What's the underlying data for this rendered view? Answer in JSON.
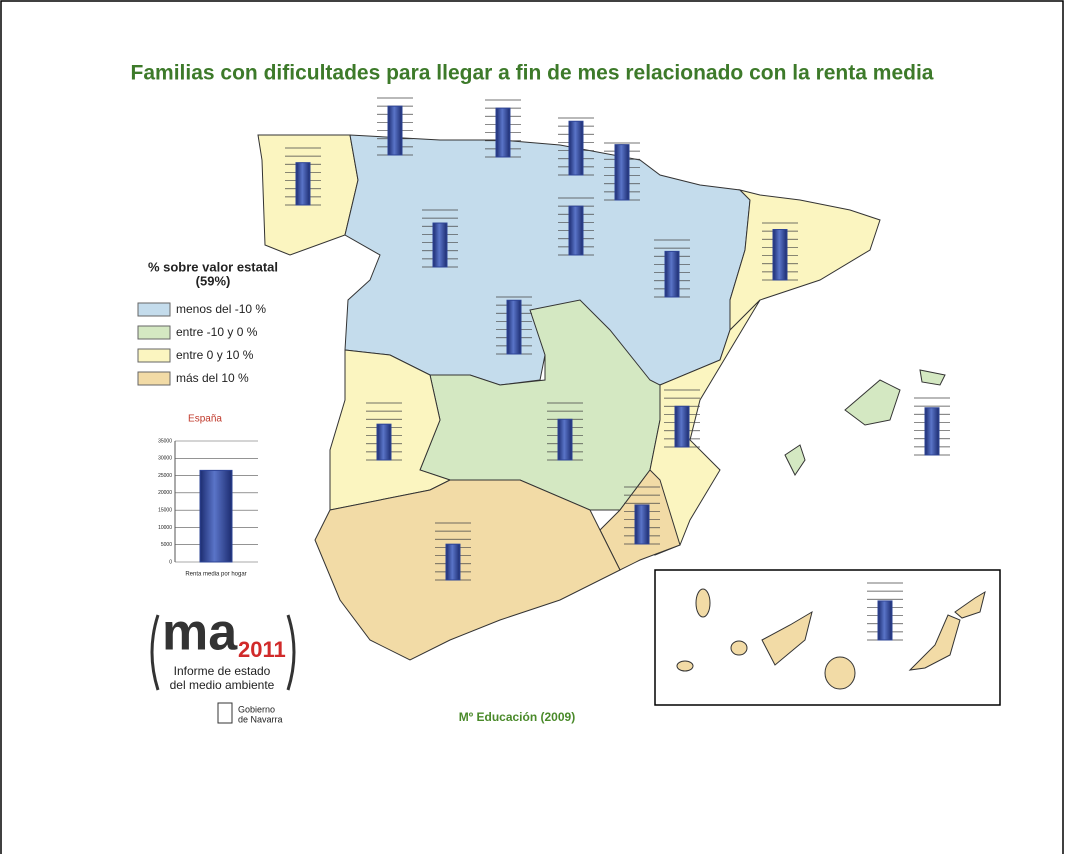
{
  "title": "Familias con dificultades para llegar a fin de mes relacionado con la renta media",
  "legend": {
    "title": "% sobre valor estatal",
    "subtitle": "(59%)",
    "items": [
      {
        "label": "menos del -10 %",
        "color": "#c4dcec"
      },
      {
        "label": "entre -10 y 0 %",
        "color": "#d4e8c2"
      },
      {
        "label": "entre 0 y 10 %",
        "color": "#fbf5c0"
      },
      {
        "label": "más del 10 %",
        "color": "#f2dba6"
      }
    ]
  },
  "chart_data": {
    "type": "bar",
    "title": "España",
    "categories": [
      "Renta media por hogar"
    ],
    "values": [
      26500
    ],
    "color": "#2e4496",
    "ylim": [
      0,
      35000
    ],
    "yticks": [
      0,
      5000,
      10000,
      15000,
      20000,
      25000,
      30000,
      35000
    ],
    "grid": true
  },
  "region_bars": {
    "values": [
      26000,
      30000,
      30000,
      33000,
      34000,
      27000,
      30000,
      28000,
      31000,
      33000,
      22000,
      25000,
      25000,
      24000,
      22000,
      29000,
      24000
    ]
  },
  "logo": {
    "name": "ma",
    "year": "2011",
    "line1": "Informe de estado",
    "line2": "del medio ambiente",
    "gov1": "Gobierno",
    "gov2": "de Navarra"
  },
  "source": "Mº Educación (2009)"
}
